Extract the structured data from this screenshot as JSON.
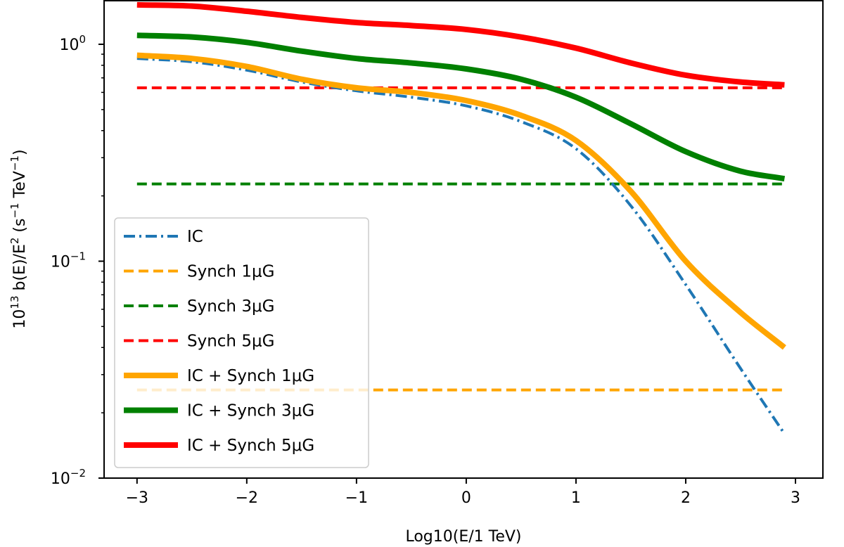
{
  "chart_data": {
    "type": "line",
    "title": "",
    "xlabel": "Log10(E/1 TeV)",
    "ylabel": "10^13 b(E)/E^2 (s^-1 TeV^-1)",
    "ylabel_parts": {
      "pre": "10",
      "exp1": "13",
      "mid": " b(E)/E",
      "exp2": "2",
      "mid2": " (s",
      "exp3": "−1",
      "mid3": " TeV",
      "exp4": "−1",
      "post": ")"
    },
    "yscale": "log",
    "xlim": [
      -3.3,
      3.25
    ],
    "ylim": [
      0.01,
      1.6
    ],
    "xticks": [
      {
        "value": -3,
        "label": "−3"
      },
      {
        "value": -2,
        "label": "−2"
      },
      {
        "value": -1,
        "label": "−1"
      },
      {
        "value": 0,
        "label": "0"
      },
      {
        "value": 1,
        "label": "1"
      },
      {
        "value": 2,
        "label": "2"
      },
      {
        "value": 3,
        "label": "3"
      }
    ],
    "yticks": [
      {
        "value": 1,
        "base": "10",
        "exp": "0"
      },
      {
        "value": 0.1,
        "base": "10",
        "exp": "−1"
      },
      {
        "value": 0.01,
        "base": "10",
        "exp": "−2"
      }
    ],
    "legend_position": "lower-left",
    "series": [
      {
        "name": "IC",
        "color": "#1f77b4",
        "style": "dashdot",
        "width": 4,
        "x": [
          -3,
          -2.5,
          -2,
          -1.5,
          -1,
          -0.5,
          0,
          0.5,
          1,
          1.5,
          2,
          2.5,
          2.9
        ],
        "y": [
          0.86,
          0.83,
          0.76,
          0.67,
          0.61,
          0.57,
          0.52,
          0.44,
          0.33,
          0.18,
          0.078,
          0.032,
          0.016
        ]
      },
      {
        "name": "Synch 1μG",
        "color": "#ffa500",
        "style": "dashed",
        "width": 4,
        "x": [
          -3,
          2.9
        ],
        "y": [
          0.0255,
          0.0255
        ]
      },
      {
        "name": "Synch 3μG",
        "color": "#008000",
        "style": "dashed",
        "width": 4,
        "x": [
          -3,
          2.9
        ],
        "y": [
          0.227,
          0.227
        ]
      },
      {
        "name": "Synch 5μG",
        "color": "#ff0000",
        "style": "dashed",
        "width": 4,
        "x": [
          -3,
          2.9
        ],
        "y": [
          0.63,
          0.63
        ]
      },
      {
        "name": "IC + Synch 1μG",
        "color": "#ffa500",
        "style": "solid",
        "width": 8,
        "x": [
          -3,
          -2.5,
          -2,
          -1.5,
          -1,
          -0.5,
          0,
          0.5,
          1,
          1.5,
          2,
          2.5,
          2.9
        ],
        "y": [
          0.89,
          0.86,
          0.79,
          0.69,
          0.63,
          0.6,
          0.55,
          0.47,
          0.36,
          0.21,
          0.1,
          0.058,
          0.04
        ]
      },
      {
        "name": "IC + Synch 3μG",
        "color": "#008000",
        "style": "solid",
        "width": 8,
        "x": [
          -3,
          -2.5,
          -2,
          -1.5,
          -1,
          -0.5,
          0,
          0.5,
          1,
          1.5,
          2,
          2.5,
          2.9
        ],
        "y": [
          1.1,
          1.08,
          1.02,
          0.93,
          0.86,
          0.82,
          0.77,
          0.69,
          0.57,
          0.43,
          0.32,
          0.26,
          0.24
        ]
      },
      {
        "name": "IC + Synch 5μG",
        "color": "#ff0000",
        "style": "solid",
        "width": 8,
        "x": [
          -3,
          -2.5,
          -2,
          -1.5,
          -1,
          -0.5,
          0,
          0.5,
          1,
          1.5,
          2,
          2.5,
          2.9
        ],
        "y": [
          1.52,
          1.5,
          1.42,
          1.33,
          1.26,
          1.22,
          1.17,
          1.08,
          0.96,
          0.82,
          0.72,
          0.67,
          0.65
        ]
      }
    ]
  }
}
